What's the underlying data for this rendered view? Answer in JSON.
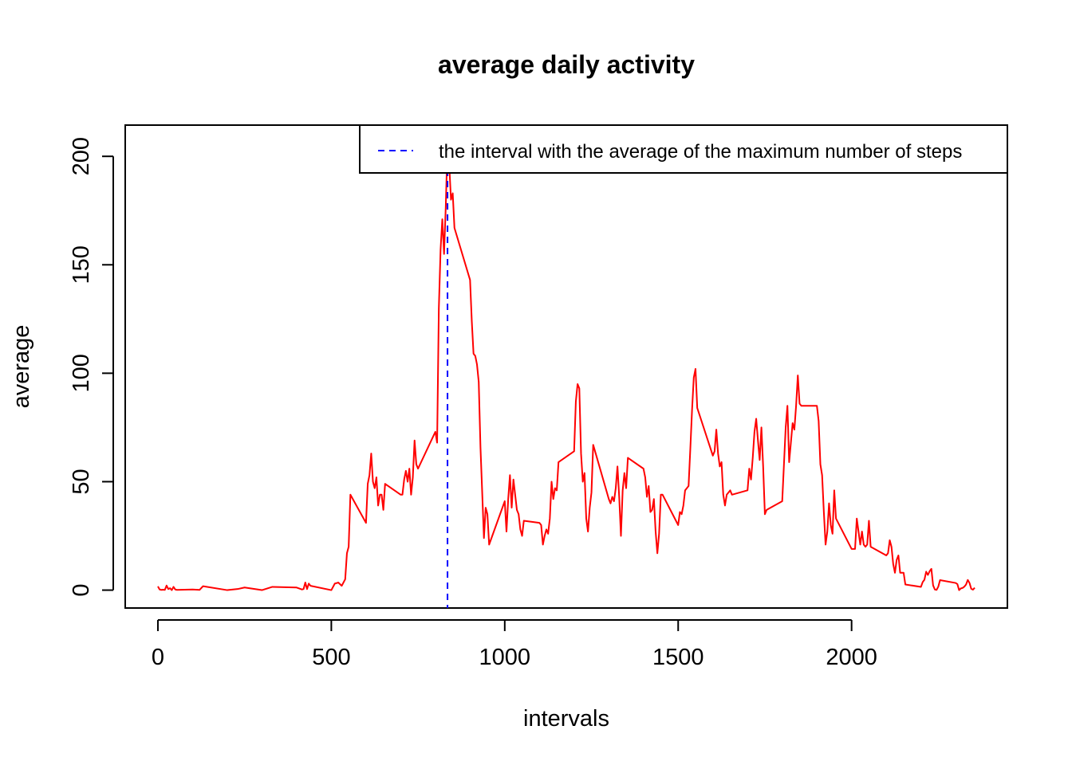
{
  "chart_data": {
    "type": "line",
    "title": "average daily activity",
    "x_label": "intervals",
    "y_label": "average",
    "xlim": [
      -94.2,
      2449.2
    ],
    "ylim": [
      -8.25,
      214.4
    ],
    "xticks": [
      0,
      500,
      1000,
      1500,
      2000
    ],
    "yticks": [
      0,
      50,
      100,
      150,
      200
    ],
    "grid": false,
    "legend": "topright",
    "series": [
      {
        "color": "#ff0000",
        "x": [
          0,
          5,
          10,
          15,
          20,
          25,
          30,
          35,
          40,
          45,
          50,
          55,
          100,
          120,
          130,
          200,
          230,
          250,
          300,
          330,
          400,
          415,
          420,
          425,
          430,
          435,
          440,
          500,
          510,
          520,
          530,
          540,
          545,
          550,
          555,
          600,
          605,
          610,
          615,
          620,
          625,
          630,
          635,
          640,
          645,
          650,
          655,
          700,
          705,
          710,
          715,
          720,
          725,
          730,
          735,
          740,
          745,
          750,
          800,
          805,
          810,
          815,
          820,
          825,
          830,
          835,
          840,
          845,
          850,
          855,
          900,
          905,
          910,
          915,
          920,
          925,
          930,
          935,
          940,
          945,
          950,
          955,
          1000,
          1005,
          1010,
          1015,
          1020,
          1025,
          1030,
          1035,
          1040,
          1045,
          1050,
          1055,
          1100,
          1105,
          1110,
          1115,
          1120,
          1125,
          1130,
          1135,
          1140,
          1145,
          1150,
          1155,
          1200,
          1205,
          1210,
          1215,
          1220,
          1225,
          1230,
          1235,
          1240,
          1245,
          1250,
          1255,
          1300,
          1305,
          1310,
          1315,
          1320,
          1325,
          1330,
          1335,
          1340,
          1345,
          1350,
          1355,
          1400,
          1405,
          1410,
          1415,
          1420,
          1425,
          1430,
          1435,
          1440,
          1445,
          1450,
          1455,
          1500,
          1505,
          1510,
          1515,
          1520,
          1525,
          1530,
          1535,
          1540,
          1545,
          1550,
          1555,
          1600,
          1605,
          1610,
          1615,
          1620,
          1625,
          1630,
          1635,
          1640,
          1645,
          1650,
          1655,
          1700,
          1705,
          1710,
          1715,
          1720,
          1725,
          1730,
          1735,
          1740,
          1745,
          1750,
          1755,
          1800,
          1805,
          1810,
          1815,
          1820,
          1825,
          1830,
          1835,
          1840,
          1845,
          1850,
          1855,
          1900,
          1905,
          1910,
          1915,
          1920,
          1925,
          1930,
          1935,
          1940,
          1945,
          1950,
          1955,
          2000,
          2005,
          2010,
          2015,
          2020,
          2025,
          2030,
          2035,
          2040,
          2045,
          2050,
          2055,
          2100,
          2105,
          2110,
          2115,
          2120,
          2125,
          2130,
          2135,
          2140,
          2145,
          2150,
          2155,
          2200,
          2205,
          2210,
          2215,
          2220,
          2225,
          2230,
          2235,
          2240,
          2245,
          2250,
          2255,
          2300,
          2305,
          2310,
          2315,
          2320,
          2325,
          2330,
          2335,
          2340,
          2345,
          2350,
          2355
        ],
        "values": [
          1.7,
          0.3,
          0.1,
          0.2,
          0.1,
          2.1,
          0.5,
          0.9,
          0,
          1.5,
          0.3,
          0.1,
          0.3,
          0.1,
          1.8,
          0,
          0.5,
          1.2,
          0,
          1.5,
          1.2,
          0.3,
          0.5,
          3.5,
          0.5,
          3,
          2,
          0,
          3,
          3.5,
          2,
          5,
          17,
          20,
          44,
          31,
          49,
          53,
          63,
          50,
          47,
          52,
          39,
          44,
          44,
          37,
          49,
          44,
          44,
          51,
          55,
          50,
          56,
          44,
          52,
          69,
          58,
          56,
          73,
          68,
          130,
          157,
          171,
          155,
          177,
          206,
          196,
          180,
          183,
          167,
          143,
          124,
          109,
          108,
          104,
          96,
          66,
          45,
          24,
          38,
          35,
          21,
          41,
          27,
          42,
          53,
          38,
          51,
          44,
          37,
          35,
          28,
          25,
          32,
          31,
          30,
          21,
          25,
          28,
          26,
          33,
          50,
          42,
          47,
          46,
          59,
          64,
          87,
          95,
          93,
          63,
          50,
          54,
          33,
          27,
          38,
          45,
          67,
          42,
          40,
          43,
          41,
          47,
          57,
          43,
          25,
          46,
          54,
          47,
          61,
          56,
          52,
          43,
          48,
          36,
          37,
          42,
          27,
          17,
          26,
          44,
          44,
          30,
          36,
          35,
          39,
          46,
          47,
          48,
          65,
          83,
          98,
          102,
          84,
          62,
          64,
          74,
          63,
          57,
          59,
          44,
          39,
          44,
          45,
          46,
          44,
          46,
          56,
          51,
          61,
          73,
          79,
          69,
          60,
          75,
          57,
          35,
          37,
          41,
          58,
          75,
          85,
          59,
          68,
          77,
          74,
          85,
          99,
          86,
          85,
          85,
          78,
          58,
          53,
          36,
          21,
          27,
          40,
          30,
          26,
          46,
          33,
          19,
          19,
          19,
          33,
          27,
          21,
          27,
          21,
          20,
          21,
          32,
          20,
          16,
          17,
          23,
          20,
          12,
          8,
          14,
          16,
          8,
          8,
          8,
          2.6,
          1.5,
          3.7,
          4.8,
          8.5,
          7,
          8.7,
          9.8,
          2.2,
          0.3,
          0.1,
          1.6,
          4.6,
          3.3,
          2.8,
          0,
          0.8,
          1,
          1.6,
          2.6,
          4.7,
          3.3,
          0.6,
          0.2,
          1.1
        ]
      }
    ],
    "reference_line": {
      "x": 835,
      "color": "#0000ff",
      "name": "the interval with the average of the maximum number of steps"
    }
  }
}
